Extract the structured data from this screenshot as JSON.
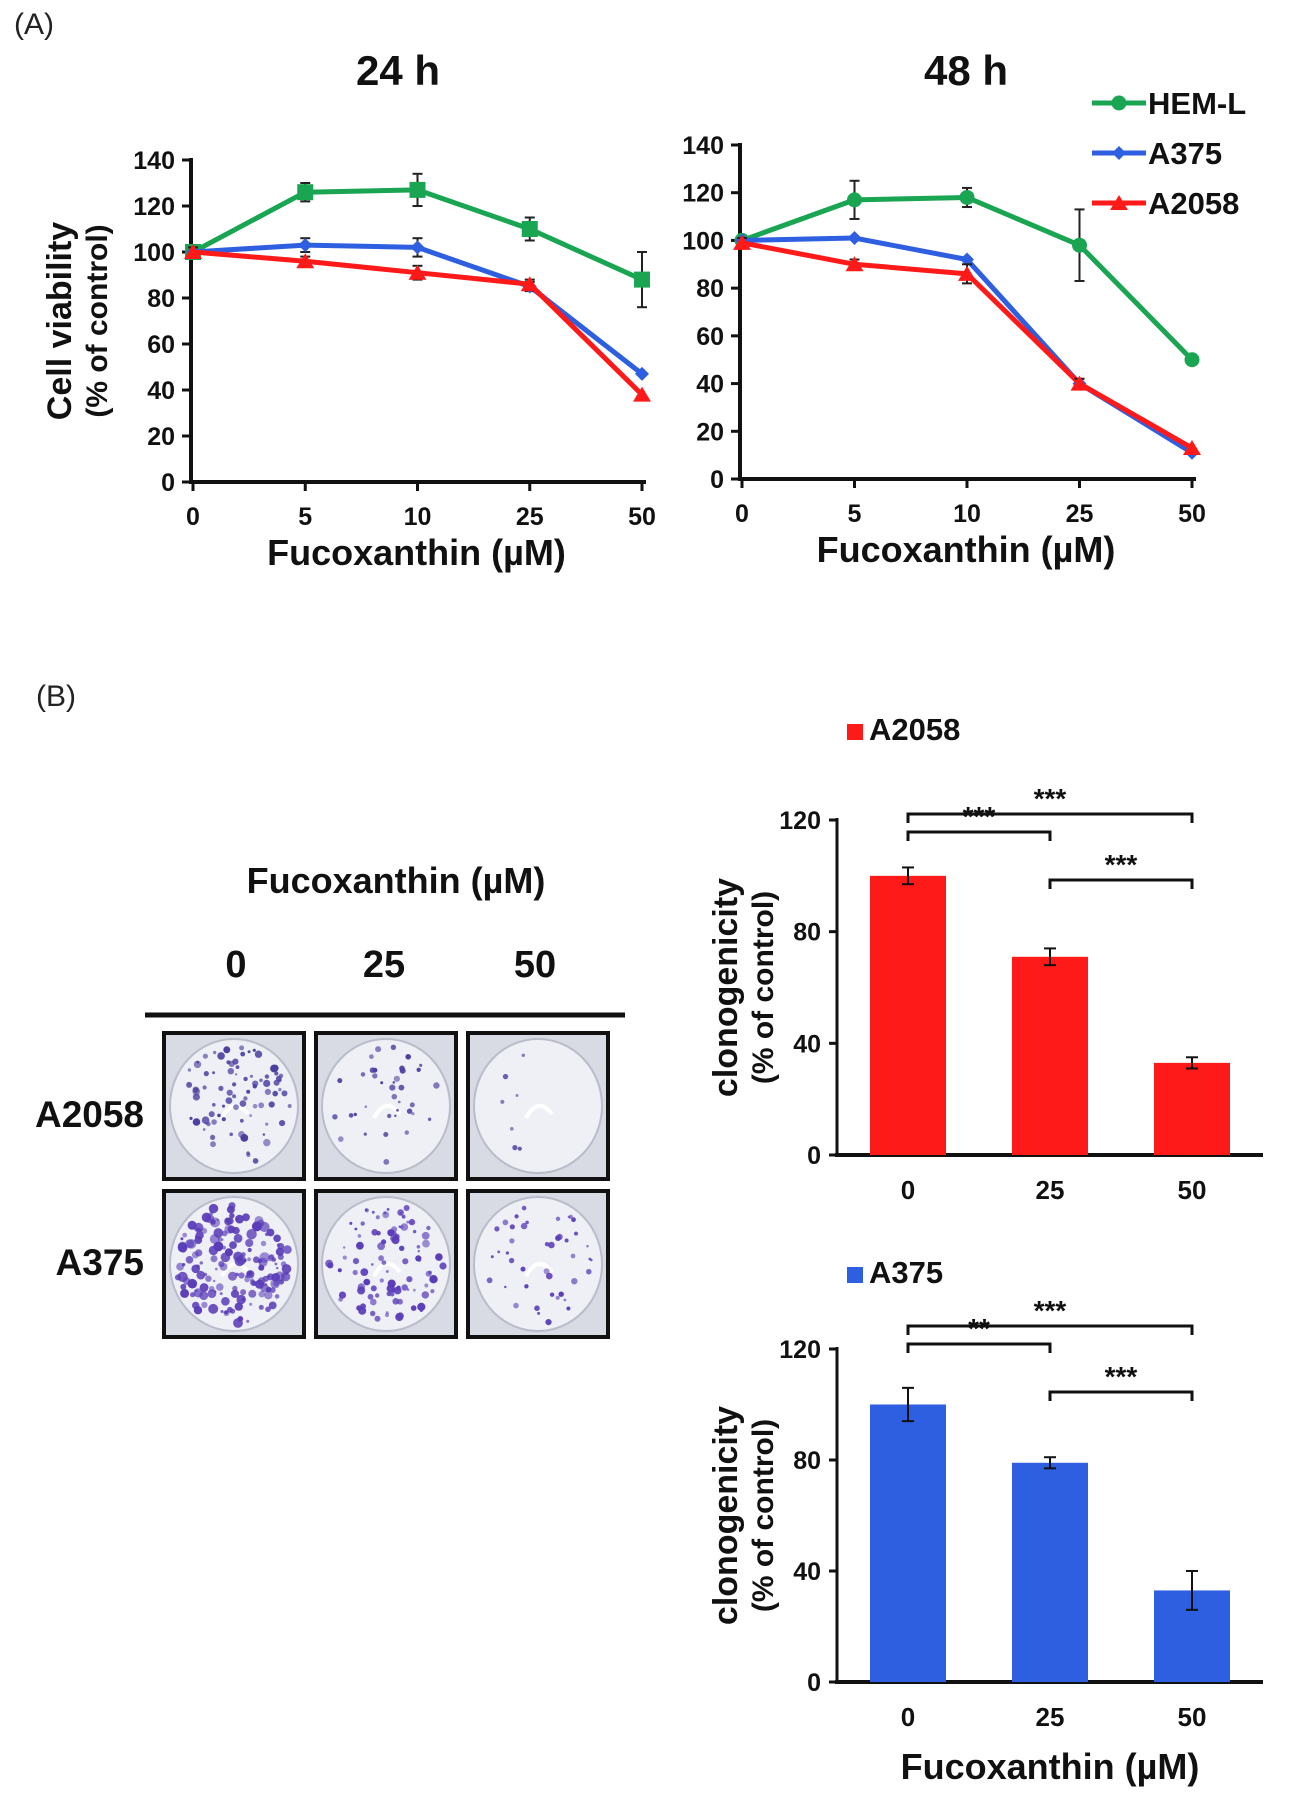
{
  "panel_labels": {
    "a": "(A)",
    "b": "(B)"
  },
  "legend": {
    "entries": [
      {
        "name": "HEM-L",
        "color": "#1aa553",
        "marker": "circle"
      },
      {
        "name": "A375",
        "color": "#2e5fe0",
        "marker": "diamond"
      },
      {
        "name": "A2058",
        "color": "#ff1a1a",
        "marker": "triangle"
      }
    ]
  },
  "plates": {
    "title": "Fucoxanthin (µM)",
    "doses": [
      "0",
      "25",
      "50"
    ],
    "rows": [
      "A2058",
      "A375"
    ],
    "colony_density": [
      [
        0.5,
        0.22,
        0.04
      ],
      [
        1.0,
        0.6,
        0.25
      ]
    ]
  },
  "chart_data": [
    {
      "type": "line",
      "title": "24 h",
      "xlabel": "Fucoxanthin (µM)",
      "ylabel": "Cell viability",
      "ylabel_sub": "(% of control)",
      "categories": [
        "0",
        "5",
        "10",
        "25",
        "50"
      ],
      "ylim": [
        0,
        140
      ],
      "yticks": [
        0,
        20,
        40,
        60,
        80,
        100,
        120,
        140
      ],
      "grid": false,
      "series": [
        {
          "name": "HEM-L",
          "values": [
            100,
            126,
            127,
            110,
            88
          ],
          "errors": [
            2,
            4,
            7,
            5,
            12
          ]
        },
        {
          "name": "A375",
          "values": [
            100,
            103,
            102,
            85,
            47
          ],
          "errors": [
            2,
            3,
            4,
            2,
            1
          ]
        },
        {
          "name": "A2058",
          "values": [
            100,
            96,
            91,
            86,
            38
          ],
          "errors": [
            2,
            2,
            3,
            2,
            1
          ]
        }
      ]
    },
    {
      "type": "line",
      "title": "48 h",
      "xlabel": "Fucoxanthin (µM)",
      "categories": [
        "0",
        "5",
        "10",
        "25",
        "50"
      ],
      "ylim": [
        0,
        140
      ],
      "yticks": [
        0,
        20,
        40,
        60,
        80,
        100,
        120,
        140
      ],
      "grid": false,
      "series": [
        {
          "name": "HEM-L",
          "values": [
            100,
            117,
            118,
            98,
            50
          ],
          "errors": [
            2,
            8,
            4,
            15,
            1
          ]
        },
        {
          "name": "A375",
          "values": [
            100,
            101,
            92,
            40,
            11
          ],
          "errors": [
            1,
            1,
            1,
            2,
            1
          ]
        },
        {
          "name": "A2058",
          "values": [
            99,
            90,
            86,
            40,
            13
          ],
          "errors": [
            2,
            2,
            4,
            2,
            1
          ]
        }
      ]
    },
    {
      "type": "bar",
      "legend": "A2058",
      "color": "#ff1a1a",
      "ylabel": "clonogenicity",
      "ylabel_sub": "(% of control)",
      "categories": [
        "0",
        "25",
        "50"
      ],
      "values": [
        100,
        71,
        33
      ],
      "errors": [
        3,
        3,
        2
      ],
      "ylim": [
        0,
        120
      ],
      "yticks": [
        0,
        40,
        80,
        120
      ],
      "significance": [
        {
          "from": 0,
          "to": 1,
          "label": "***",
          "level": 1
        },
        {
          "from": 1,
          "to": 2,
          "label": "***",
          "level": 0
        },
        {
          "from": 0,
          "to": 2,
          "label": "***",
          "level": 2
        }
      ]
    },
    {
      "type": "bar",
      "legend": "A375",
      "color": "#2e5fe0",
      "ylabel": "clonogenicity",
      "ylabel_sub": "(% of control)",
      "xlabel": "Fucoxanthin (µM)",
      "categories": [
        "0",
        "25",
        "50"
      ],
      "values": [
        100,
        79,
        33
      ],
      "errors": [
        6,
        2,
        7
      ],
      "ylim": [
        0,
        120
      ],
      "yticks": [
        0,
        40,
        80,
        120
      ],
      "significance": [
        {
          "from": 0,
          "to": 1,
          "label": "**",
          "level": 1
        },
        {
          "from": 1,
          "to": 2,
          "label": "***",
          "level": 0
        },
        {
          "from": 0,
          "to": 2,
          "label": "***",
          "level": 2
        }
      ]
    }
  ]
}
